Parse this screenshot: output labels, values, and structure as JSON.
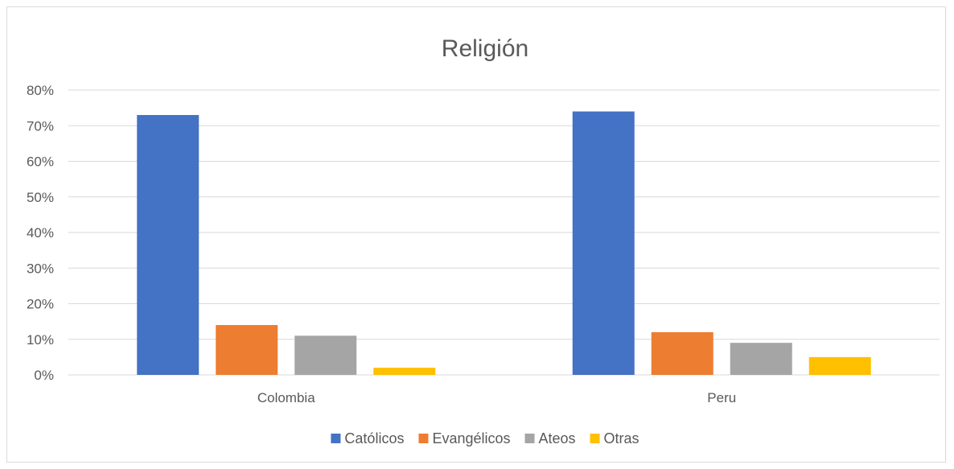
{
  "chart_data": {
    "type": "bar",
    "title": "Religión",
    "categories": [
      "Colombia",
      "Peru"
    ],
    "series": [
      {
        "name": "Católicos",
        "color": "#4472C4",
        "values": [
          0.73,
          0.74
        ]
      },
      {
        "name": "Evangélicos",
        "color": "#ED7D31",
        "values": [
          0.14,
          0.12
        ]
      },
      {
        "name": "Ateos",
        "color": "#A5A5A5",
        "values": [
          0.11,
          0.09
        ]
      },
      {
        "name": "Otras",
        "color": "#FFC000",
        "values": [
          0.02,
          0.05
        ]
      }
    ],
    "yticks": [
      "0%",
      "10%",
      "20%",
      "30%",
      "40%",
      "50%",
      "60%",
      "70%",
      "80%"
    ],
    "ylim": [
      0,
      0.8
    ],
    "grid": true,
    "legend_position": "bottom",
    "gridline_color": "#d9d9d9",
    "axis_color": "#d9d9d9",
    "text_color": "#595959"
  }
}
